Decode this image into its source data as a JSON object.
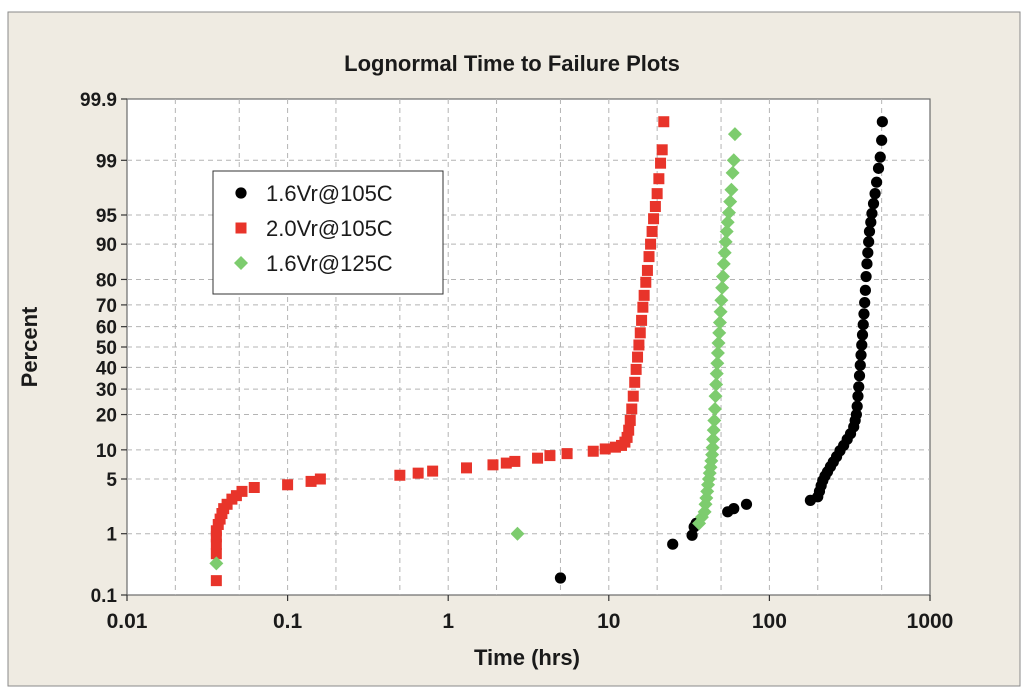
{
  "chart_data": {
    "type": "scatter",
    "title": "Lognormal Time to Failure Plots",
    "xlabel": "Time (hrs)",
    "ylabel": "Percent",
    "x_scale": "log",
    "y_scale": "normal-probability",
    "xlim": [
      0.01,
      1000
    ],
    "ylim": [
      0.1,
      99.9
    ],
    "x_ticks": [
      "0.01",
      "0.1",
      "1",
      "10",
      "100",
      "1000"
    ],
    "y_ticks": [
      "0.1",
      "1",
      "5",
      "10",
      "20",
      "30",
      "40",
      "50",
      "60",
      "70",
      "80",
      "90",
      "95",
      "99",
      "99.9"
    ],
    "grid": true,
    "legend_position": "upper-left",
    "series": [
      {
        "name": "1.6Vr@105C",
        "color": "#000000",
        "marker": "circle",
        "points": [
          [
            5.0,
            0.2
          ],
          [
            25,
            0.7
          ],
          [
            33,
            0.95
          ],
          [
            34,
            1.25
          ],
          [
            35,
            1.4
          ],
          [
            55,
            2.0
          ],
          [
            60,
            2.2
          ],
          [
            72,
            2.5
          ],
          [
            180,
            2.8
          ],
          [
            200,
            3.1
          ],
          [
            205,
            3.6
          ],
          [
            210,
            4.2
          ],
          [
            215,
            4.8
          ],
          [
            222,
            5.4
          ],
          [
            230,
            6.0
          ],
          [
            240,
            6.8
          ],
          [
            250,
            7.6
          ],
          [
            262,
            8.6
          ],
          [
            275,
            9.8
          ],
          [
            290,
            11.0
          ],
          [
            305,
            12.5
          ],
          [
            320,
            14.0
          ],
          [
            335,
            16.0
          ],
          [
            342,
            18.0
          ],
          [
            348,
            20.0
          ],
          [
            352,
            23.0
          ],
          [
            356,
            27.0
          ],
          [
            360,
            31.0
          ],
          [
            364,
            36.0
          ],
          [
            368,
            41.0
          ],
          [
            372,
            46.0
          ],
          [
            376,
            51.0
          ],
          [
            380,
            56.0
          ],
          [
            384,
            61.0
          ],
          [
            388,
            66.0
          ],
          [
            392,
            71.0
          ],
          [
            396,
            76.0
          ],
          [
            400,
            81.0
          ],
          [
            405,
            85.0
          ],
          [
            410,
            88.0
          ],
          [
            415,
            90.5
          ],
          [
            420,
            92.5
          ],
          [
            428,
            94.0
          ],
          [
            435,
            95.2
          ],
          [
            445,
            96.3
          ],
          [
            455,
            97.2
          ],
          [
            465,
            98.0
          ],
          [
            478,
            98.7
          ],
          [
            490,
            99.1
          ],
          [
            500,
            99.5
          ],
          [
            505,
            99.75
          ]
        ]
      },
      {
        "name": "2.0Vr@105C",
        "color": "#e8342a",
        "marker": "square",
        "points": [
          [
            0.036,
            0.18
          ],
          [
            0.036,
            0.5
          ],
          [
            0.036,
            0.7
          ],
          [
            0.036,
            0.9
          ],
          [
            0.036,
            1.1
          ],
          [
            0.037,
            1.35
          ],
          [
            0.038,
            1.6
          ],
          [
            0.039,
            1.9
          ],
          [
            0.04,
            2.2
          ],
          [
            0.042,
            2.5
          ],
          [
            0.045,
            2.9
          ],
          [
            0.048,
            3.2
          ],
          [
            0.052,
            3.6
          ],
          [
            0.062,
            4.0
          ],
          [
            0.1,
            4.3
          ],
          [
            0.14,
            4.7
          ],
          [
            0.16,
            5.0
          ],
          [
            0.5,
            5.5
          ],
          [
            0.65,
            5.8
          ],
          [
            0.8,
            6.1
          ],
          [
            1.3,
            6.6
          ],
          [
            1.9,
            7.1
          ],
          [
            2.3,
            7.4
          ],
          [
            2.6,
            7.7
          ],
          [
            3.6,
            8.3
          ],
          [
            4.3,
            8.8
          ],
          [
            5.5,
            9.2
          ],
          [
            8.0,
            9.7
          ],
          [
            9.5,
            10.2
          ],
          [
            11.0,
            10.6
          ],
          [
            12.0,
            11.0
          ],
          [
            12.6,
            11.8
          ],
          [
            13.0,
            13.0
          ],
          [
            13.3,
            15.0
          ],
          [
            13.6,
            18.0
          ],
          [
            13.9,
            22.0
          ],
          [
            14.2,
            27.0
          ],
          [
            14.5,
            33.0
          ],
          [
            14.8,
            39.0
          ],
          [
            15.1,
            45.0
          ],
          [
            15.4,
            51.0
          ],
          [
            15.7,
            57.0
          ],
          [
            16.0,
            63.0
          ],
          [
            16.3,
            69.0
          ],
          [
            16.6,
            74.0
          ],
          [
            17.0,
            79.0
          ],
          [
            17.4,
            83.0
          ],
          [
            17.8,
            87.0
          ],
          [
            18.2,
            90.0
          ],
          [
            18.6,
            92.5
          ],
          [
            19.0,
            94.5
          ],
          [
            19.5,
            96.0
          ],
          [
            20.0,
            97.2
          ],
          [
            20.5,
            98.2
          ],
          [
            21.0,
            98.9
          ],
          [
            21.5,
            99.3
          ],
          [
            22.0,
            99.75
          ]
        ]
      },
      {
        "name": "1.6Vr@125C",
        "color": "#7dcc6e",
        "marker": "diamond",
        "points": [
          [
            0.036,
            0.35
          ],
          [
            2.7,
            1.0
          ],
          [
            36.5,
            1.4
          ],
          [
            38.0,
            1.7
          ],
          [
            39.5,
            2.0
          ],
          [
            40.0,
            2.5
          ],
          [
            40.5,
            3.0
          ],
          [
            41.0,
            3.6
          ],
          [
            41.5,
            4.3
          ],
          [
            42.0,
            5.0
          ],
          [
            42.5,
            5.8
          ],
          [
            43.0,
            6.7
          ],
          [
            43.5,
            7.8
          ],
          [
            44.0,
            9.0
          ],
          [
            44.3,
            10.5
          ],
          [
            44.6,
            12.5
          ],
          [
            45.0,
            15.0
          ],
          [
            45.4,
            18.0
          ],
          [
            45.8,
            22.0
          ],
          [
            46.2,
            27.0
          ],
          [
            46.6,
            32.0
          ],
          [
            47.0,
            37.0
          ],
          [
            47.4,
            42.0
          ],
          [
            47.8,
            47.0
          ],
          [
            48.2,
            52.0
          ],
          [
            48.7,
            57.0
          ],
          [
            49.2,
            62.0
          ],
          [
            49.7,
            67.0
          ],
          [
            50.2,
            72.0
          ],
          [
            50.8,
            77.0
          ],
          [
            51.4,
            81.0
          ],
          [
            52.0,
            85.0
          ],
          [
            52.7,
            88.0
          ],
          [
            53.4,
            90.5
          ],
          [
            54.2,
            92.5
          ],
          [
            55.0,
            94.0
          ],
          [
            56.0,
            95.3
          ],
          [
            57.0,
            96.5
          ],
          [
            58.0,
            97.5
          ],
          [
            59.0,
            98.5
          ],
          [
            60.0,
            99.0
          ],
          [
            61.0,
            99.6
          ]
        ]
      }
    ]
  }
}
